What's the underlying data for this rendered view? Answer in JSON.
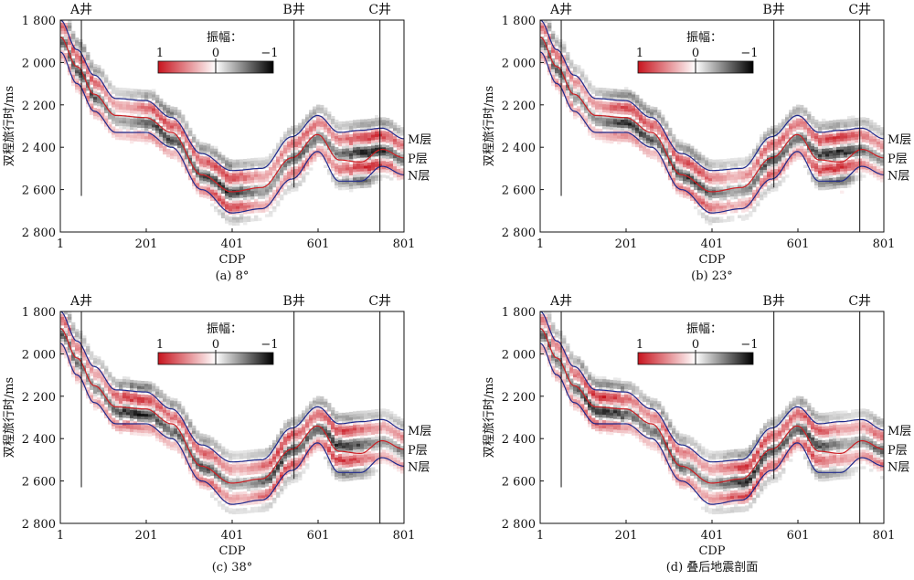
{
  "chart_data": [
    {
      "type": "heatmap",
      "caption": "(a) 8°",
      "ylabel": "双程旅行时/ms",
      "xlabel": "CDP",
      "x_ticks": [
        "1",
        "201",
        "401",
        "601",
        "801"
      ],
      "y_ticks": [
        "1 800",
        "2 000",
        "2 200",
        "2 400",
        "2 600",
        "2 800"
      ],
      "xlim": [
        1,
        801
      ],
      "ylim": [
        1800,
        2800
      ],
      "legend": {
        "title": "振幅：",
        "min_label": "1",
        "mid_label": "0",
        "max_label": "−1"
      },
      "wells": [
        {
          "name": "A井",
          "cdp": 50,
          "t_end": 2630
        },
        {
          "name": "B井",
          "cdp": 545,
          "t_end": 2590
        },
        {
          "name": "C井",
          "cdp": 745,
          "t_end": 2800
        }
      ],
      "horizons": [
        {
          "name": "M层",
          "color": "#1f2a8c",
          "cdp": [
            1,
            40,
            80,
            130,
            200,
            260,
            330,
            400,
            470,
            540,
            600,
            650,
            700,
            750,
            801
          ],
          "time": [
            1800,
            1940,
            2060,
            2170,
            2180,
            2260,
            2430,
            2510,
            2500,
            2350,
            2250,
            2330,
            2320,
            2310,
            2360
          ]
        },
        {
          "name": "P层",
          "color": "#cc1f24",
          "cdp": [
            1,
            40,
            80,
            130,
            200,
            260,
            330,
            400,
            470,
            540,
            600,
            650,
            700,
            750,
            801
          ],
          "time": [
            1880,
            2020,
            2150,
            2250,
            2260,
            2330,
            2530,
            2610,
            2590,
            2450,
            2340,
            2460,
            2470,
            2410,
            2450
          ]
        },
        {
          "name": "N层",
          "color": "#1f2a8c",
          "cdp": [
            1,
            40,
            80,
            130,
            200,
            260,
            330,
            400,
            470,
            540,
            600,
            650,
            700,
            750,
            801
          ],
          "time": [
            1950,
            2100,
            2230,
            2330,
            2330,
            2400,
            2600,
            2710,
            2690,
            2550,
            2420,
            2560,
            2560,
            2490,
            2530
          ]
        }
      ],
      "seed": 1
    },
    {
      "type": "heatmap",
      "caption": "(b) 23°",
      "ylabel": "双程旅行时/ms",
      "xlabel": "CDP",
      "x_ticks": [
        "1",
        "201",
        "401",
        "601",
        "801"
      ],
      "y_ticks": [
        "1 800",
        "2 000",
        "2 200",
        "2 400",
        "2 600",
        "2 800"
      ],
      "xlim": [
        1,
        801
      ],
      "ylim": [
        1800,
        2800
      ],
      "legend": {
        "title": "振幅：",
        "min_label": "1",
        "mid_label": "0",
        "max_label": "−1"
      },
      "wells": [
        {
          "name": "A井",
          "cdp": 50,
          "t_end": 2630
        },
        {
          "name": "B井",
          "cdp": 545,
          "t_end": 2590
        },
        {
          "name": "C井",
          "cdp": 745,
          "t_end": 2800
        }
      ],
      "horizons": [
        {
          "name": "M层",
          "color": "#1f2a8c",
          "cdp": [
            1,
            40,
            80,
            130,
            200,
            260,
            330,
            400,
            470,
            540,
            600,
            650,
            700,
            750,
            801
          ],
          "time": [
            1800,
            1940,
            2060,
            2170,
            2180,
            2260,
            2430,
            2510,
            2500,
            2350,
            2250,
            2330,
            2320,
            2310,
            2360
          ]
        },
        {
          "name": "P层",
          "color": "#cc1f24",
          "cdp": [
            1,
            40,
            80,
            130,
            200,
            260,
            330,
            400,
            470,
            540,
            600,
            650,
            700,
            750,
            801
          ],
          "time": [
            1880,
            2020,
            2150,
            2250,
            2260,
            2330,
            2530,
            2610,
            2590,
            2450,
            2340,
            2460,
            2470,
            2410,
            2450
          ]
        },
        {
          "name": "N层",
          "color": "#1f2a8c",
          "cdp": [
            1,
            40,
            80,
            130,
            200,
            260,
            330,
            400,
            470,
            540,
            600,
            650,
            700,
            750,
            801
          ],
          "time": [
            1950,
            2100,
            2230,
            2330,
            2330,
            2400,
            2600,
            2710,
            2690,
            2550,
            2420,
            2560,
            2560,
            2490,
            2530
          ]
        }
      ],
      "seed": 2
    },
    {
      "type": "heatmap",
      "caption": "(c) 38°",
      "ylabel": "双程旅行时/ms",
      "xlabel": "CDP",
      "x_ticks": [
        "1",
        "201",
        "401",
        "601",
        "801"
      ],
      "y_ticks": [
        "1 800",
        "2 000",
        "2 200",
        "2 400",
        "2 600",
        "2 800"
      ],
      "xlim": [
        1,
        801
      ],
      "ylim": [
        1800,
        2800
      ],
      "legend": {
        "title": "振幅：",
        "min_label": "1",
        "mid_label": "0",
        "max_label": "−1"
      },
      "wells": [
        {
          "name": "A井",
          "cdp": 50,
          "t_end": 2630
        },
        {
          "name": "B井",
          "cdp": 545,
          "t_end": 2590
        },
        {
          "name": "C井",
          "cdp": 745,
          "t_end": 2800
        }
      ],
      "horizons": [
        {
          "name": "M层",
          "color": "#1f2a8c",
          "cdp": [
            1,
            40,
            80,
            130,
            200,
            260,
            330,
            400,
            470,
            540,
            600,
            650,
            700,
            750,
            801
          ],
          "time": [
            1800,
            1940,
            2060,
            2170,
            2180,
            2260,
            2430,
            2510,
            2500,
            2350,
            2250,
            2330,
            2320,
            2310,
            2360
          ]
        },
        {
          "name": "P层",
          "color": "#cc1f24",
          "cdp": [
            1,
            40,
            80,
            130,
            200,
            260,
            330,
            400,
            470,
            540,
            600,
            650,
            700,
            750,
            801
          ],
          "time": [
            1880,
            2020,
            2150,
            2250,
            2260,
            2330,
            2530,
            2610,
            2590,
            2450,
            2340,
            2460,
            2470,
            2410,
            2450
          ]
        },
        {
          "name": "N层",
          "color": "#1f2a8c",
          "cdp": [
            1,
            40,
            80,
            130,
            200,
            260,
            330,
            400,
            470,
            540,
            600,
            650,
            700,
            750,
            801
          ],
          "time": [
            1950,
            2100,
            2230,
            2330,
            2330,
            2400,
            2600,
            2710,
            2690,
            2550,
            2420,
            2560,
            2560,
            2490,
            2530
          ]
        }
      ],
      "seed": 3
    },
    {
      "type": "heatmap",
      "caption": "(d) 叠后地震剖面",
      "ylabel": "双程旅行时/ms",
      "xlabel": "CDP",
      "x_ticks": [
        "1",
        "201",
        "401",
        "601",
        "801"
      ],
      "y_ticks": [
        "1 800",
        "2 000",
        "2 200",
        "2 400",
        "2 600",
        "2 800"
      ],
      "xlim": [
        1,
        801
      ],
      "ylim": [
        1800,
        2800
      ],
      "legend": {
        "title": "振幅：",
        "min_label": "1",
        "mid_label": "0",
        "max_label": "−1"
      },
      "wells": [
        {
          "name": "A井",
          "cdp": 50,
          "t_end": 2630
        },
        {
          "name": "B井",
          "cdp": 545,
          "t_end": 2590
        },
        {
          "name": "C井",
          "cdp": 745,
          "t_end": 2800
        }
      ],
      "horizons": [
        {
          "name": "M层",
          "color": "#1f2a8c",
          "cdp": [
            1,
            40,
            80,
            130,
            200,
            260,
            330,
            400,
            470,
            540,
            600,
            650,
            700,
            750,
            801
          ],
          "time": [
            1800,
            1940,
            2060,
            2170,
            2180,
            2260,
            2430,
            2510,
            2500,
            2350,
            2250,
            2330,
            2320,
            2310,
            2360
          ]
        },
        {
          "name": "P层",
          "color": "#cc1f24",
          "cdp": [
            1,
            40,
            80,
            130,
            200,
            260,
            330,
            400,
            470,
            540,
            600,
            650,
            700,
            750,
            801
          ],
          "time": [
            1880,
            2020,
            2150,
            2250,
            2260,
            2330,
            2530,
            2610,
            2590,
            2450,
            2340,
            2460,
            2470,
            2410,
            2450
          ]
        },
        {
          "name": "N层",
          "color": "#1f2a8c",
          "cdp": [
            1,
            40,
            80,
            130,
            200,
            260,
            330,
            400,
            470,
            540,
            600,
            650,
            700,
            750,
            801
          ],
          "time": [
            1950,
            2100,
            2230,
            2330,
            2330,
            2400,
            2600,
            2710,
            2690,
            2550,
            2420,
            2560,
            2560,
            2490,
            2530
          ]
        }
      ],
      "seed": 4
    }
  ],
  "colors": {
    "positive": "#c8141e",
    "zero": "#ffffff",
    "negative": "#000000",
    "axis": "#111111"
  }
}
